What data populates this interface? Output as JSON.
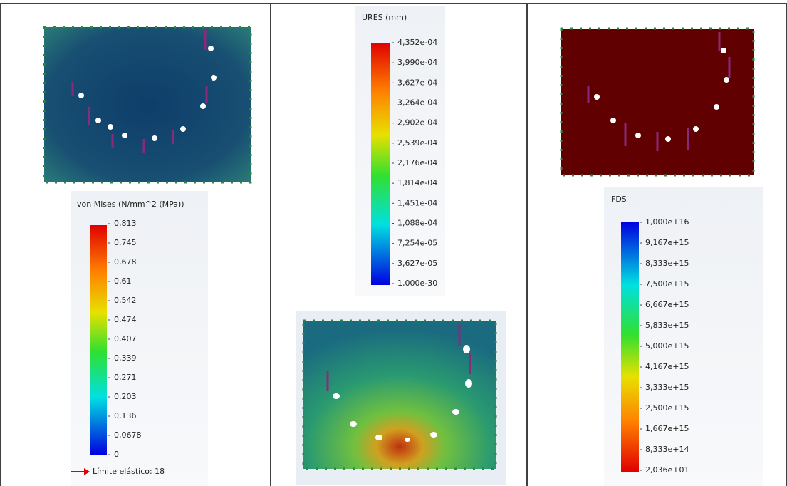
{
  "panels": [
    {
      "legend": {
        "title": "von Mises (N/mm^2 (MPa))",
        "labels": [
          "0,813",
          "0,745",
          "0,678",
          "0,61",
          "0,542",
          "0,474",
          "0,407",
          "0,339",
          "0,271",
          "0,203",
          "0,136",
          "0,0678",
          "0"
        ],
        "note": "Límite elástico: 18"
      }
    },
    {
      "legend": {
        "title": "URES (mm)",
        "labels": [
          "4,352e-04",
          "3,990e-04",
          "3,627e-04",
          "3,264e-04",
          "2,902e-04",
          "2,539e-04",
          "2,176e-04",
          "1,814e-04",
          "1,451e-04",
          "1,088e-04",
          "7,254e-05",
          "3,627e-05",
          "1,000e-30"
        ]
      }
    },
    {
      "legend": {
        "title": "FDS",
        "labels": [
          "1,000e+16",
          "9,167e+15",
          "8,333e+15",
          "7,500e+15",
          "6,667e+15",
          "5,833e+15",
          "5,000e+15",
          "4,167e+15",
          "3,333e+15",
          "2,500e+15",
          "1,667e+15",
          "8,333e+14",
          "2,036e+01"
        ]
      }
    }
  ]
}
